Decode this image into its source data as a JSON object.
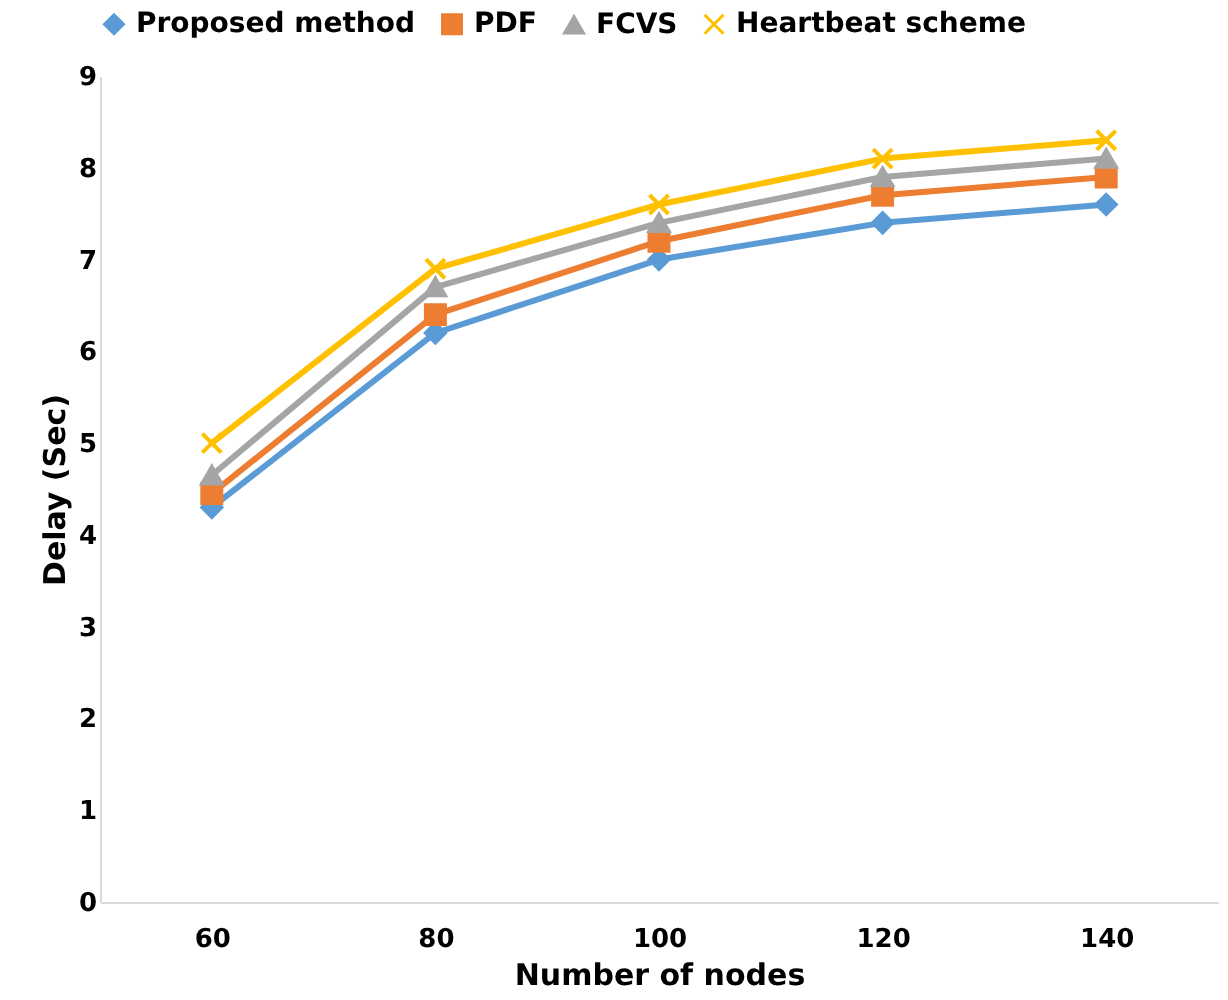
{
  "chart_data": {
    "type": "line",
    "xlabel": "Number of nodes",
    "ylabel": "Delay (Sec)",
    "categories": [
      "60",
      "80",
      "100",
      "120",
      "140"
    ],
    "series": [
      {
        "name": "Proposed method",
        "color": "#5b9bd5",
        "marker": "diamond",
        "values": [
          4.3,
          6.2,
          7.0,
          7.4,
          7.6
        ]
      },
      {
        "name": "PDF",
        "color": "#ed7d31",
        "marker": "square",
        "values": [
          4.45,
          6.4,
          7.2,
          7.7,
          7.9
        ]
      },
      {
        "name": "FCVS",
        "color": "#a5a5a5",
        "marker": "triangle",
        "values": [
          4.65,
          6.7,
          7.4,
          7.9,
          8.1
        ]
      },
      {
        "name": "Heartbeat scheme",
        "color": "#ffc000",
        "marker": "cross",
        "values": [
          5.0,
          6.9,
          7.6,
          8.1,
          8.3
        ]
      }
    ],
    "ylim": [
      0,
      9
    ],
    "yticks": [
      0,
      1,
      2,
      3,
      4,
      5,
      6,
      7,
      8,
      9
    ],
    "grid": false,
    "legend": "top"
  }
}
